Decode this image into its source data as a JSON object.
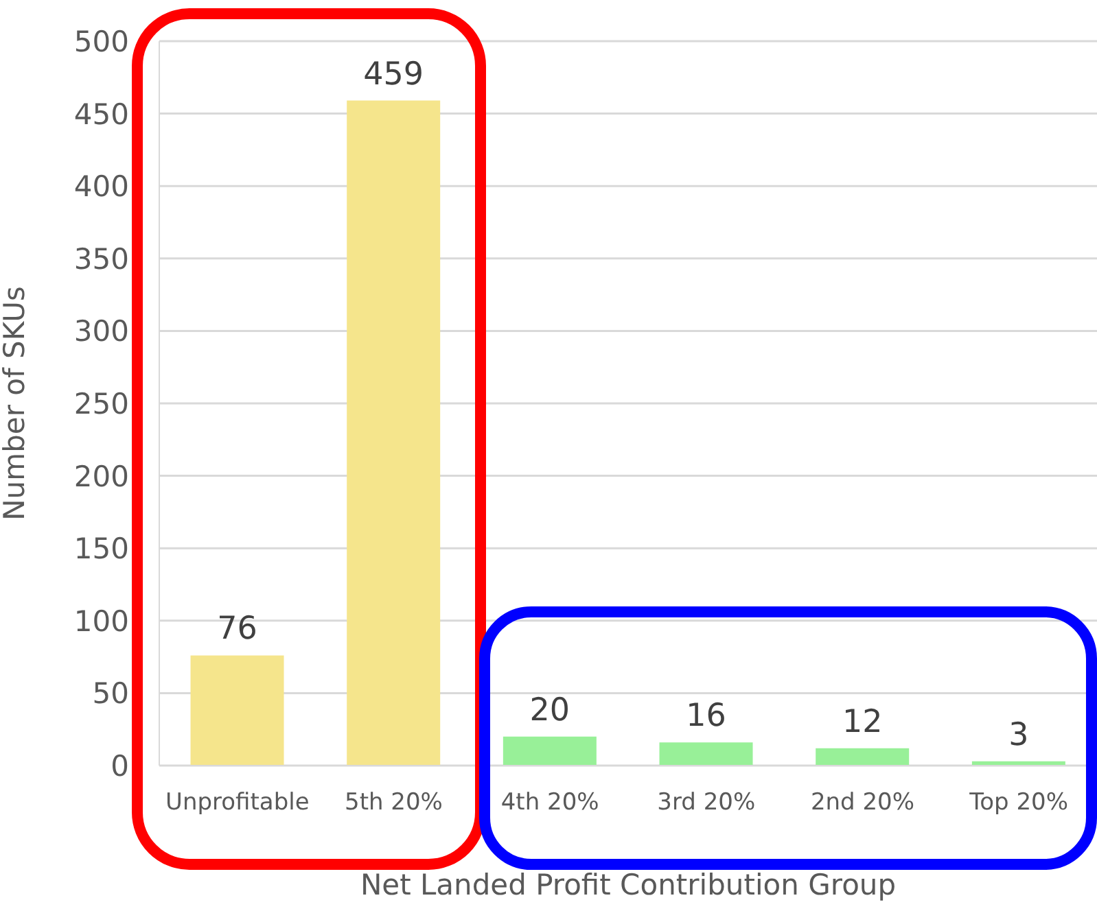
{
  "chart_data": {
    "type": "bar",
    "xlabel": "Net Landed Profit Contribution Group",
    "ylabel": "Number of SKUs",
    "categories": [
      "Unprofitable",
      "5th 20%",
      "4th 20%",
      "3rd 20%",
      "2nd 20%",
      "Top 20%"
    ],
    "values": [
      76,
      459,
      20,
      16,
      12,
      3
    ],
    "colors": [
      "#f5e58c",
      "#f5e58c",
      "#98f098",
      "#98f098",
      "#98f098",
      "#98f098"
    ],
    "ylim": [
      0,
      500
    ],
    "yticks": [
      0,
      50,
      100,
      150,
      200,
      250,
      300,
      350,
      400,
      450,
      500
    ],
    "grid": "y",
    "data_labels": true
  }
}
